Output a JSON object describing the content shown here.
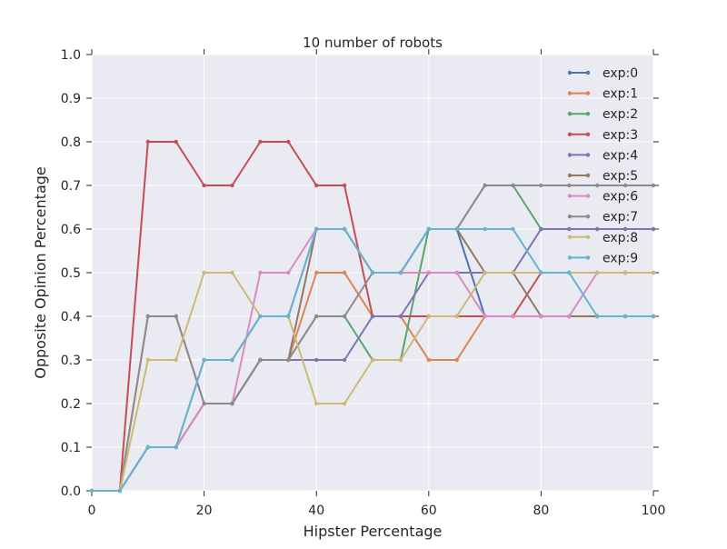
{
  "chart_data": {
    "type": "line",
    "title": "10 number of robots",
    "xlabel": "Hipster Percentage",
    "ylabel": "Opposite Opinion Percentage",
    "xlim": [
      0,
      100
    ],
    "ylim": [
      0,
      1.0
    ],
    "xticks": [
      0,
      20,
      40,
      60,
      80,
      100
    ],
    "xtick_labels": [
      "0",
      "20",
      "40",
      "60",
      "80",
      "100"
    ],
    "yticks": [
      0.0,
      0.1,
      0.2,
      0.3,
      0.4,
      0.5,
      0.6,
      0.7,
      0.8,
      0.9,
      1.0
    ],
    "ytick_labels": [
      "0.0",
      "0.1",
      "0.2",
      "0.3",
      "0.4",
      "0.5",
      "0.6",
      "0.7",
      "0.8",
      "0.9",
      "1.0"
    ],
    "grid": true,
    "legend_position": "top-right",
    "x": [
      0,
      5,
      10,
      15,
      20,
      25,
      30,
      35,
      40,
      45,
      50,
      55,
      60,
      65,
      70,
      75,
      80,
      85,
      90,
      95,
      100
    ],
    "series": [
      {
        "name": "exp:0",
        "color": "#4c72b0",
        "values": [
          0.0,
          0.0,
          0.1,
          0.1,
          0.3,
          0.3,
          0.4,
          0.4,
          0.6,
          0.6,
          0.5,
          0.5,
          0.6,
          0.6,
          0.4,
          0.4,
          0.4,
          0.4,
          0.4,
          0.4,
          0.4
        ]
      },
      {
        "name": "exp:1",
        "color": "#dd8452",
        "values": [
          0.0,
          0.0,
          0.1,
          0.1,
          0.2,
          0.2,
          0.3,
          0.3,
          0.5,
          0.5,
          0.4,
          0.4,
          0.3,
          0.3,
          0.4,
          0.4,
          0.4,
          0.4,
          0.4,
          0.4,
          0.4
        ]
      },
      {
        "name": "exp:2",
        "color": "#55a868",
        "values": [
          0.0,
          0.0,
          0.1,
          0.1,
          0.2,
          0.2,
          0.3,
          0.3,
          0.4,
          0.4,
          0.3,
          0.3,
          0.6,
          0.6,
          0.7,
          0.7,
          0.6,
          0.6,
          0.6,
          0.6,
          0.6
        ]
      },
      {
        "name": "exp:3",
        "color": "#c44e52",
        "values": [
          0.0,
          0.0,
          0.8,
          0.8,
          0.7,
          0.7,
          0.8,
          0.8,
          0.7,
          0.7,
          0.4,
          0.4,
          0.4,
          0.4,
          0.4,
          0.4,
          0.5,
          0.5,
          0.5,
          0.5,
          0.5
        ]
      },
      {
        "name": "exp:4",
        "color": "#8172b2",
        "values": [
          0.0,
          0.0,
          0.1,
          0.1,
          0.2,
          0.2,
          0.3,
          0.3,
          0.3,
          0.3,
          0.4,
          0.4,
          0.5,
          0.5,
          0.5,
          0.5,
          0.6,
          0.6,
          0.6,
          0.6,
          0.6
        ]
      },
      {
        "name": "exp:5",
        "color": "#937860",
        "values": [
          0.0,
          0.0,
          0.4,
          0.4,
          0.2,
          0.2,
          0.3,
          0.3,
          0.6,
          0.6,
          0.5,
          0.5,
          0.6,
          0.6,
          0.5,
          0.5,
          0.4,
          0.4,
          0.4,
          0.4,
          0.4
        ]
      },
      {
        "name": "exp:6",
        "color": "#da8bc3",
        "values": [
          0.0,
          0.0,
          0.1,
          0.1,
          0.2,
          0.2,
          0.5,
          0.5,
          0.6,
          0.6,
          0.5,
          0.5,
          0.5,
          0.5,
          0.4,
          0.4,
          0.4,
          0.4,
          0.5,
          0.5,
          0.5
        ]
      },
      {
        "name": "exp:7",
        "color": "#8c8c8c",
        "values": [
          0.0,
          0.0,
          0.4,
          0.4,
          0.2,
          0.2,
          0.3,
          0.3,
          0.4,
          0.4,
          0.5,
          0.5,
          0.6,
          0.6,
          0.7,
          0.7,
          0.7,
          0.7,
          0.7,
          0.7,
          0.7
        ]
      },
      {
        "name": "exp:8",
        "color": "#ccb974",
        "values": [
          0.0,
          0.0,
          0.3,
          0.3,
          0.5,
          0.5,
          0.4,
          0.4,
          0.2,
          0.2,
          0.3,
          0.3,
          0.4,
          0.4,
          0.5,
          0.5,
          0.5,
          0.5,
          0.5,
          0.5,
          0.5
        ]
      },
      {
        "name": "exp:9",
        "color": "#64b5cd",
        "values": [
          0.0,
          0.0,
          0.1,
          0.1,
          0.3,
          0.3,
          0.4,
          0.4,
          0.6,
          0.6,
          0.5,
          0.5,
          0.6,
          0.6,
          0.6,
          0.6,
          0.5,
          0.5,
          0.4,
          0.4,
          0.4
        ]
      }
    ]
  },
  "colors": {
    "plot_background": "#eaeaf2",
    "grid": "#ffffff",
    "text": "#262626"
  }
}
